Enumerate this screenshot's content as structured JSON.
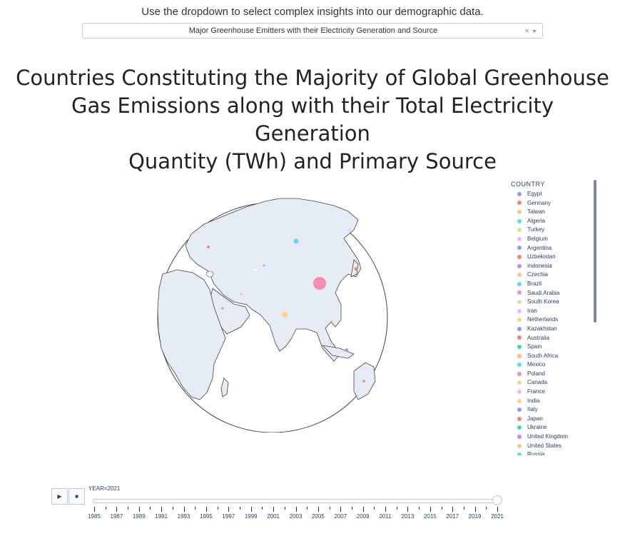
{
  "header": {
    "instruction": "Use the dropdown to select complex insights into our demographic data."
  },
  "dropdown": {
    "selected": "Major Greenhouse Emitters with their Electricity Generation and Source",
    "clear_glyph": "×"
  },
  "chart": {
    "title_lines": [
      "Countries Constituting the Majority of Global Greenhouse",
      "Gas Emissions along with their Total Electricity Generation",
      "Quantity (TWh) and Primary Source"
    ]
  },
  "legend": {
    "title": "COUNTRY",
    "items": [
      {
        "label": "Egypt",
        "color": "#8b9cf0"
      },
      {
        "label": "Germany",
        "color": "#ef8573"
      },
      {
        "label": "Taiwan",
        "color": "#fdbd8c"
      },
      {
        "label": "Algeria",
        "color": "#5fd8ee"
      },
      {
        "label": "Turkey",
        "color": "#c5ea9d"
      },
      {
        "label": "Belgium",
        "color": "#f6b2f0"
      },
      {
        "label": "Argentina",
        "color": "#8b9cf0"
      },
      {
        "label": "Uzbekistan",
        "color": "#ef8573"
      },
      {
        "label": "Indonesia",
        "color": "#bb8cf2"
      },
      {
        "label": "Czechia",
        "color": "#fdbd8c"
      },
      {
        "label": "Brazil",
        "color": "#5fd8ee"
      },
      {
        "label": "Saudi Arabia",
        "color": "#f48fb1"
      },
      {
        "label": "South Korea",
        "color": "#c5ea9d"
      },
      {
        "label": "Iran",
        "color": "#f6b2f0"
      },
      {
        "label": "Netherlands",
        "color": "#fdd27b"
      },
      {
        "label": "Kazakhstan",
        "color": "#8b9cf0"
      },
      {
        "label": "Australia",
        "color": "#ef8573"
      },
      {
        "label": "Spain",
        "color": "#4ad3a7"
      },
      {
        "label": "South Africa",
        "color": "#fdbd8c"
      },
      {
        "label": "Mexico",
        "color": "#5fd8ee"
      },
      {
        "label": "Poland",
        "color": "#f48fb1"
      },
      {
        "label": "Canada",
        "color": "#c5ea9d"
      },
      {
        "label": "France",
        "color": "#f6b2f0"
      },
      {
        "label": "India",
        "color": "#fdd27b"
      },
      {
        "label": "Italy",
        "color": "#8b9cf0"
      },
      {
        "label": "Japan",
        "color": "#ef8573"
      },
      {
        "label": "Ukraine",
        "color": "#4ad3a7"
      },
      {
        "label": "United Kingdom",
        "color": "#bb8cf2"
      },
      {
        "label": "United States",
        "color": "#fdbd8c"
      },
      {
        "label": "Russia",
        "color": "#5fd8ee"
      }
    ]
  },
  "globe": {
    "land_color": "#e5ecf6",
    "coast_color": "#444444",
    "markers": [
      {
        "country": "China",
        "color": "#f48fb1"
      },
      {
        "country": "Russia",
        "color": "#5fd8ee"
      },
      {
        "country": "India",
        "color": "#fdd27b"
      },
      {
        "country": "Japan",
        "color": "#ef8573"
      },
      {
        "country": "Indonesia",
        "color": "#bb8cf2"
      },
      {
        "country": "Taiwan",
        "color": "#fdbd8c"
      },
      {
        "country": "Germany",
        "color": "#ef8573"
      },
      {
        "country": "Saudi Arabia",
        "color": "#f48fb1"
      },
      {
        "country": "Iran",
        "color": "#f6b2f0"
      },
      {
        "country": "Australia",
        "color": "#ef8573"
      },
      {
        "country": "Kazakhstan",
        "color": "#8b9cf0"
      },
      {
        "country": "South Korea",
        "color": "#c5ea9d"
      }
    ]
  },
  "player": {
    "play_glyph": "▶",
    "stop_glyph": "■",
    "current_label": "YEAR=2021",
    "years": [
      "1985",
      "1987",
      "1989",
      "1991",
      "1993",
      "1995",
      "1997",
      "1999",
      "2001",
      "2003",
      "2005",
      "2007",
      "2009",
      "2011",
      "2013",
      "2015",
      "2017",
      "2019",
      "2021"
    ],
    "current_fraction": 1.0
  }
}
